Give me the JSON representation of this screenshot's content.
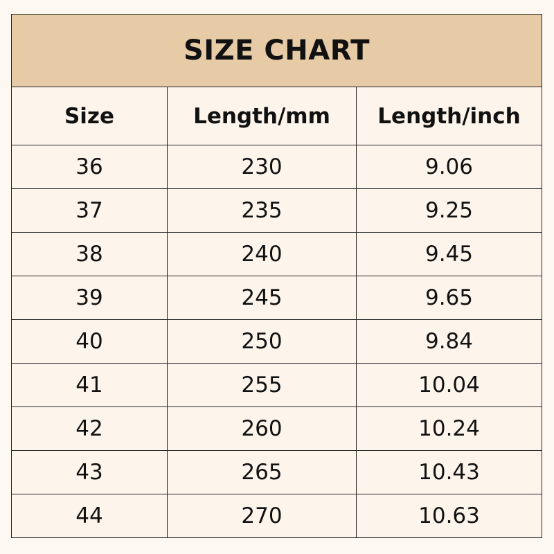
{
  "title": "SIZE CHART",
  "colors": {
    "title_bg": "#e6cba6",
    "cell_bg": "#fdf5ec",
    "border": "#222222"
  },
  "columns": [
    "Size",
    "Length/mm",
    "Length/inch"
  ],
  "rows": [
    [
      "36",
      "230",
      "9.06"
    ],
    [
      "37",
      "235",
      "9.25"
    ],
    [
      "38",
      "240",
      "9.45"
    ],
    [
      "39",
      "245",
      "9.65"
    ],
    [
      "40",
      "250",
      "9.84"
    ],
    [
      "41",
      "255",
      "10.04"
    ],
    [
      "42",
      "260",
      "10.24"
    ],
    [
      "43",
      "265",
      "10.43"
    ],
    [
      "44",
      "270",
      "10.63"
    ]
  ]
}
